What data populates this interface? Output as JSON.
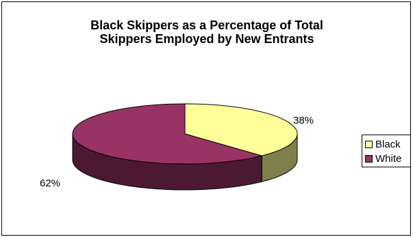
{
  "chart_data": {
    "type": "pie",
    "title_lines": [
      "Black Skippers as a Percentage of Total",
      "Skippers Employed by New Entrants"
    ],
    "slices": [
      {
        "name": "Black",
        "value": 38,
        "label": "38%",
        "color": "#ffff99",
        "side_color": "#7f7f4c"
      },
      {
        "name": "White",
        "value": 62,
        "label": "62%",
        "color": "#993366",
        "side_color": "#4c1933"
      }
    ],
    "legend_placement": "right"
  }
}
